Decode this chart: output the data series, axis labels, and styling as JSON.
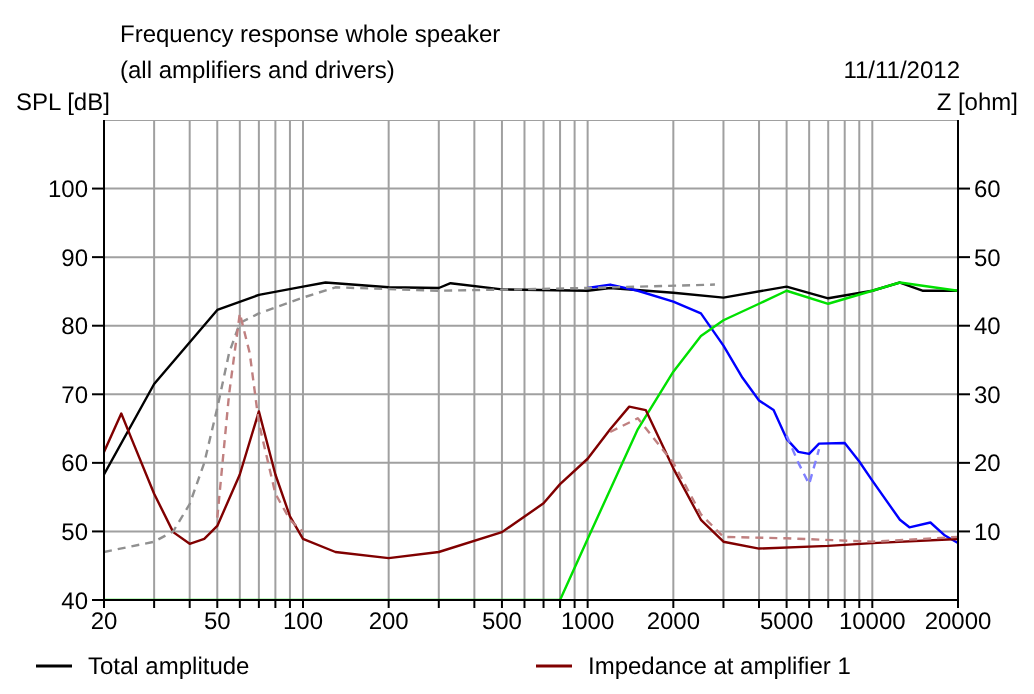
{
  "chart_data": {
    "type": "line",
    "title": "Frequency response whole speaker",
    "subtitle": "(all amplifiers and drivers)",
    "annotations": [
      "11/11/2012"
    ],
    "ylabel": "SPL [dB]",
    "y2label": "Z [ohm]",
    "log": "x",
    "xlim": [
      20,
      20000
    ],
    "xticks": [
      20,
      {
        "value": 30,
        "label": null
      },
      {
        "value": 40,
        "label": null
      },
      50,
      {
        "value": 60,
        "label": null
      },
      {
        "value": 70,
        "label": null
      },
      {
        "value": 80,
        "label": null
      },
      {
        "value": 90,
        "label": null
      },
      100,
      200,
      {
        "value": 300,
        "label": null
      },
      {
        "value": 400,
        "label": null
      },
      500,
      {
        "value": 600,
        "label": null
      },
      {
        "value": 700,
        "label": null
      },
      {
        "value": 800,
        "label": null
      },
      {
        "value": 900,
        "label": null
      },
      1000,
      2000,
      {
        "value": 3000,
        "label": null
      },
      {
        "value": 4000,
        "label": null
      },
      5000,
      {
        "value": 6000,
        "label": null
      },
      {
        "value": 7000,
        "label": null
      },
      {
        "value": 8000,
        "label": null
      },
      {
        "value": 9000,
        "label": null
      },
      10000,
      20000
    ],
    "ylim": [
      40,
      110
    ],
    "yticks": [
      40,
      50,
      60,
      70,
      80,
      90,
      100
    ],
    "y2lim": [
      0,
      70
    ],
    "y2ticks": [
      10,
      20,
      30,
      40,
      50,
      60
    ],
    "grid": true,
    "legend": "bottom",
    "marker": "none",
    "line_style": "solid",
    "series": [
      {
        "name": "Total amplitude",
        "color": "#000000",
        "x": [
          20,
          30,
          50,
          70,
          100,
          120,
          200,
          300,
          330,
          500,
          1000,
          1200,
          2000,
          3000,
          5000,
          7000,
          10000,
          12500,
          15000,
          20000
        ],
        "values": [
          58.3,
          71.5,
          82.3,
          84.5,
          85.7,
          86.3,
          85.6,
          85.5,
          86.2,
          85.3,
          85.1,
          85.5,
          84.8,
          84.1,
          85.7,
          84,
          85.1,
          86.3,
          85.1,
          85.1
        ]
      },
      {
        "color": "#0000ff",
        "x": [
          1000,
          1200,
          1500,
          2000,
          2500,
          3000,
          3500,
          4000,
          4500,
          5000,
          5500,
          6000,
          6500,
          8000,
          9000,
          10000,
          12500,
          13500,
          16000,
          18000,
          20000
        ],
        "values": [
          85.5,
          86,
          85.1,
          83.5,
          81.8,
          77.1,
          72.4,
          69.1,
          67.7,
          63.5,
          61.6,
          61.3,
          62.8,
          62.9,
          60.2,
          57.4,
          51.7,
          50.6,
          51.3,
          49.4,
          48.3
        ]
      },
      {
        "color": "#00e000",
        "x": [
          20,
          800,
          1000,
          1500,
          2000,
          2500,
          3000,
          4000,
          5000,
          7000,
          10000,
          12500,
          20000
        ],
        "values": [
          40,
          40,
          48.9,
          64.9,
          73.3,
          78.5,
          80.8,
          83.2,
          85.1,
          83.2,
          85.1,
          86.3,
          85.1
        ]
      },
      {
        "name": "Impedance at amplifier 1",
        "color": "#800000",
        "axis": "y2",
        "x": [
          20,
          23,
          25,
          30,
          35,
          40,
          45,
          50,
          60,
          70,
          80,
          90,
          100,
          130,
          200,
          300,
          500,
          700,
          800,
          1000,
          1200,
          1400,
          1600,
          2000,
          2500,
          3000,
          4000,
          7000,
          10000,
          20000
        ],
        "values": [
          21.6,
          27.2,
          23.5,
          15.5,
          9.9,
          8.2,
          8.9,
          10.8,
          18.3,
          27.5,
          18.3,
          12.2,
          8.9,
          7,
          6.1,
          7,
          9.9,
          14.1,
          16.9,
          20.6,
          24.9,
          28.2,
          27.7,
          19.2,
          11.7,
          8.5,
          7.5,
          7.9,
          8.3,
          8.9
        ]
      },
      {
        "color": "#909090",
        "line_style": "dashed",
        "x": [
          20,
          30,
          35,
          40,
          45,
          50,
          55,
          60,
          70,
          100,
          130,
          300,
          1000,
          2800
        ],
        "values": [
          47,
          48.5,
          50,
          54,
          60,
          68,
          76,
          80.4,
          81.8,
          84.1,
          85.6,
          85.1,
          85.5,
          86
        ]
      },
      {
        "color": "#c08080",
        "line_style": "dashed",
        "axis": "y2",
        "x": [
          50,
          55,
          60,
          65,
          70,
          80,
          90,
          100,
          1100,
          1200,
          1500,
          2000,
          2500,
          3000,
          5000,
          10000,
          20000
        ],
        "values": [
          12,
          30,
          41.8,
          36,
          25.8,
          15.5,
          11.7,
          9.9,
          null,
          24.5,
          26.5,
          20,
          12.5,
          9.2,
          9,
          8.5,
          9.2
        ]
      },
      {
        "color": "#8080ff",
        "line_style": "dashed",
        "x": [
          5000,
          5500,
          6000,
          6500
        ],
        "values": [
          64,
          60,
          56.9,
          62
        ]
      }
    ]
  }
}
